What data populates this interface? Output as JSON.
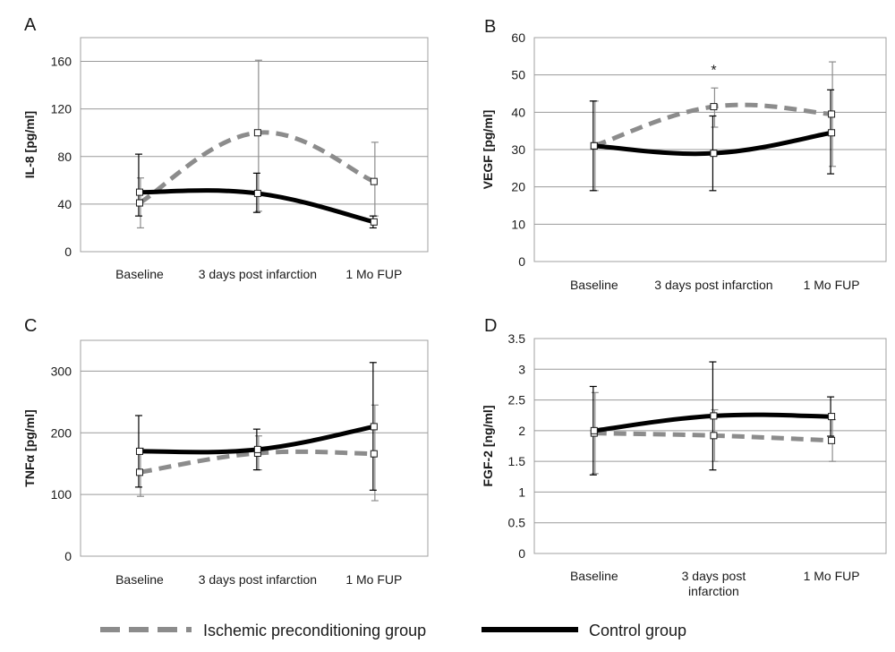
{
  "legend": {
    "ischemic_label": "Ischemic preconditioning group",
    "control_label": "Control group"
  },
  "colors": {
    "ischemic": "#8c8c8c",
    "control": "#000000",
    "grid": "#9a9a9a",
    "frame": "#a0a0a0"
  },
  "chart_data": [
    {
      "panel": "A",
      "type": "line",
      "ylabel": "IL-8 [pg/ml]",
      "categories": [
        [
          "Baseline"
        ],
        [
          "3 days post infarction"
        ],
        [
          "1 Mo FUP"
        ]
      ],
      "ylim": [
        0,
        180
      ],
      "yticks": [
        0,
        40,
        80,
        120,
        160
      ],
      "yticklabels": [
        "0",
        "40",
        "80",
        "120",
        "160"
      ],
      "grid": true,
      "annotations": [],
      "series": [
        {
          "name": "Ischemic preconditioning group",
          "values": [
            41,
            100,
            59
          ],
          "err_low": [
            20,
            34,
            30
          ],
          "err_high": [
            62,
            161,
            92
          ]
        },
        {
          "name": "Control group",
          "values": [
            50,
            49,
            25
          ],
          "err_low": [
            30,
            33,
            20
          ],
          "err_high": [
            82,
            66,
            30
          ]
        }
      ]
    },
    {
      "panel": "B",
      "type": "line",
      "ylabel": "VEGF [pg/ml]",
      "categories": [
        [
          "Baseline"
        ],
        [
          "3 days post infarction"
        ],
        [
          "1 Mo FUP"
        ]
      ],
      "ylim": [
        0,
        60
      ],
      "yticks": [
        0,
        10,
        20,
        30,
        40,
        50,
        60
      ],
      "yticklabels": [
        "0",
        "10",
        "20",
        "30",
        "40",
        "50",
        "60"
      ],
      "grid": true,
      "annotations": [
        {
          "text": "*",
          "x_index": 1,
          "y": 52
        }
      ],
      "series": [
        {
          "name": "Ischemic preconditioning group",
          "values": [
            31,
            41.5,
            39.5
          ],
          "err_low": [
            19,
            36,
            25.5
          ],
          "err_high": [
            43,
            46.5,
            53.5
          ]
        },
        {
          "name": "Control group",
          "values": [
            31,
            29,
            34.5
          ],
          "err_low": [
            19,
            19,
            23.5
          ],
          "err_high": [
            43,
            39,
            46
          ]
        }
      ]
    },
    {
      "panel": "C",
      "type": "line",
      "ylabel": "TNFα [pg/ml]",
      "categories": [
        [
          "Baseline"
        ],
        [
          "3 days post infarction"
        ],
        [
          "1 Mo FUP"
        ]
      ],
      "ylim": [
        0,
        350
      ],
      "yticks": [
        0,
        100,
        200,
        300
      ],
      "yticklabels": [
        "0",
        "100",
        "200",
        "300"
      ],
      "grid": true,
      "annotations": [],
      "series": [
        {
          "name": "Ischemic preconditioning group",
          "values": [
            136,
            167,
            166
          ],
          "err_low": [
            97,
            140,
            90
          ],
          "err_high": [
            175,
            195,
            245
          ]
        },
        {
          "name": "Control group",
          "values": [
            170,
            173,
            210
          ],
          "err_low": [
            112,
            140,
            107
          ],
          "err_high": [
            228,
            206,
            314
          ]
        }
      ]
    },
    {
      "panel": "D",
      "type": "line",
      "ylabel": "FGF-2 [ng/ml]",
      "categories": [
        [
          "Baseline"
        ],
        [
          "3 days post",
          "infarction"
        ],
        [
          "1 Mo FUP"
        ]
      ],
      "ylim": [
        0,
        3.5
      ],
      "yticks": [
        0,
        0.5,
        1,
        1.5,
        2,
        2.5,
        3,
        3.5
      ],
      "yticklabels": [
        "0",
        "0.5",
        "1",
        "1.5",
        "2",
        "2.5",
        "3",
        "3.5"
      ],
      "grid": true,
      "annotations": [],
      "series": [
        {
          "name": "Ischemic preconditioning group",
          "values": [
            1.96,
            1.92,
            1.84
          ],
          "err_low": [
            1.3,
            1.5,
            1.5
          ],
          "err_high": [
            2.62,
            2.34,
            2.18
          ]
        },
        {
          "name": "Control group",
          "values": [
            2.0,
            2.24,
            2.23
          ],
          "err_low": [
            1.28,
            1.36,
            1.91
          ],
          "err_high": [
            2.72,
            3.12,
            2.55
          ]
        }
      ]
    }
  ]
}
